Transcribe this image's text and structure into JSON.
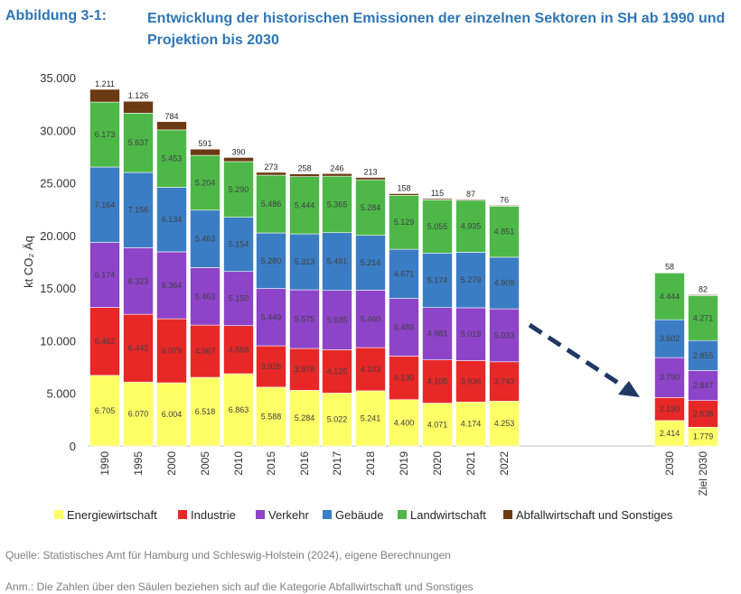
{
  "figure": {
    "label": "Abbildung 3-1:",
    "title": "Entwicklung der historischen Emissionen der einzelnen Sektoren in SH ab 1990 und Projektion bis 2030"
  },
  "chart_data": {
    "type": "bar",
    "stacked": true,
    "ylabel": "kt CO₂ Äq",
    "ylim": [
      0,
      35000
    ],
    "yticks": [
      "0",
      "5.000",
      "10.000",
      "15.000",
      "20.000",
      "25.000",
      "30.000",
      "35.000"
    ],
    "categories": [
      "1990",
      "1995",
      "2000",
      "2005",
      "2010",
      "2015",
      "2016",
      "2017",
      "2018",
      "2019",
      "2020",
      "2021",
      "2022",
      "2030",
      "Ziel 2030"
    ],
    "series": [
      {
        "name": "Energiewirtschaft",
        "color": "#ffff66",
        "values": [
          6705,
          6070,
          6004,
          6518,
          6863,
          5588,
          5284,
          5022,
          5241,
          4400,
          4071,
          4174,
          4253,
          2414,
          1779
        ],
        "labels": [
          "6.705",
          "6.070",
          "6.004",
          "6.518",
          "6.863",
          "5.588",
          "5.284",
          "5.022",
          "5.241",
          "4.400",
          "4.071",
          "4.174",
          "4.253",
          "2.414",
          "1.779"
        ]
      },
      {
        "name": "Industrie",
        "color": "#e82727",
        "values": [
          6462,
          6442,
          6079,
          4967,
          4568,
          3926,
          3978,
          4125,
          4103,
          4130,
          4105,
          3936,
          3743,
          2190,
          2538
        ],
        "labels": [
          "6.462",
          "6.442",
          "6.079",
          "4.967",
          "4.568",
          "3.926",
          "3.978",
          "4.125",
          "4.103",
          "4.130",
          "4.105",
          "3.936",
          "3.743",
          "2.190",
          "2.538"
        ]
      },
      {
        "name": "Verkehr",
        "color": "#8e44c9",
        "values": [
          6174,
          6323,
          6364,
          5463,
          5150,
          5449,
          5575,
          5635,
          5460,
          5489,
          4981,
          5019,
          5033,
          3790,
          2847
        ],
        "labels": [
          "6.174",
          "6.323",
          "6.364",
          "5.463",
          "5.150",
          "5.449",
          "5.575",
          "5.635",
          "5.460",
          "5.489",
          "4.981",
          "5.019",
          "5.033",
          "3.790",
          "2.847"
        ]
      },
      {
        "name": "Gebäude",
        "color": "#3b7dc4",
        "values": [
          7164,
          7156,
          6134,
          5463,
          5154,
          5280,
          5313,
          5491,
          5214,
          4671,
          5174,
          5279,
          4909,
          3602,
          2855
        ],
        "labels": [
          "7.164",
          "7.156",
          "6.134",
          "5.463",
          "5.154",
          "5.280",
          "5.313",
          "5.491",
          "5.214",
          "4.671",
          "5.174",
          "5.279",
          "4.909",
          "3.602",
          "2.855"
        ]
      },
      {
        "name": "Landwirtschaft",
        "color": "#4db848",
        "values": [
          6173,
          5637,
          5453,
          5204,
          5290,
          5486,
          5444,
          5365,
          5284,
          5129,
          5055,
          4935,
          4851,
          4444,
          4271
        ],
        "labels": [
          "6.173",
          "5.637",
          "5.453",
          "5.204",
          "5.290",
          "5.486",
          "5.444",
          "5.365",
          "5.284",
          "5.129",
          "5.055",
          "4.935",
          "4.851",
          "4.444",
          "4.271"
        ]
      },
      {
        "name": "Abfallwirtschaft und Sonstiges",
        "color": "#6b3a12",
        "values": [
          1211,
          1126,
          784,
          591,
          390,
          273,
          258,
          246,
          213,
          158,
          115,
          87,
          76,
          58,
          82
        ],
        "labels": [
          "1.211",
          "1.126",
          "784",
          "591",
          "390",
          "273",
          "258",
          "246",
          "213",
          "158",
          "115",
          "87",
          "76",
          "58",
          "82"
        ]
      }
    ],
    "legend_position": "bottom",
    "annotations": [
      "dashed arrow pointing from 2022 towards 2030 projection"
    ]
  },
  "source": "Quelle: Statistisches Amt für Hamburg und Schleswig-Holstein (2024), eigene Berechnungen",
  "note": "Anm.: Die Zahlen über den Säulen beziehen sich auf die Kategorie Abfallwirtschaft und Sonstiges"
}
